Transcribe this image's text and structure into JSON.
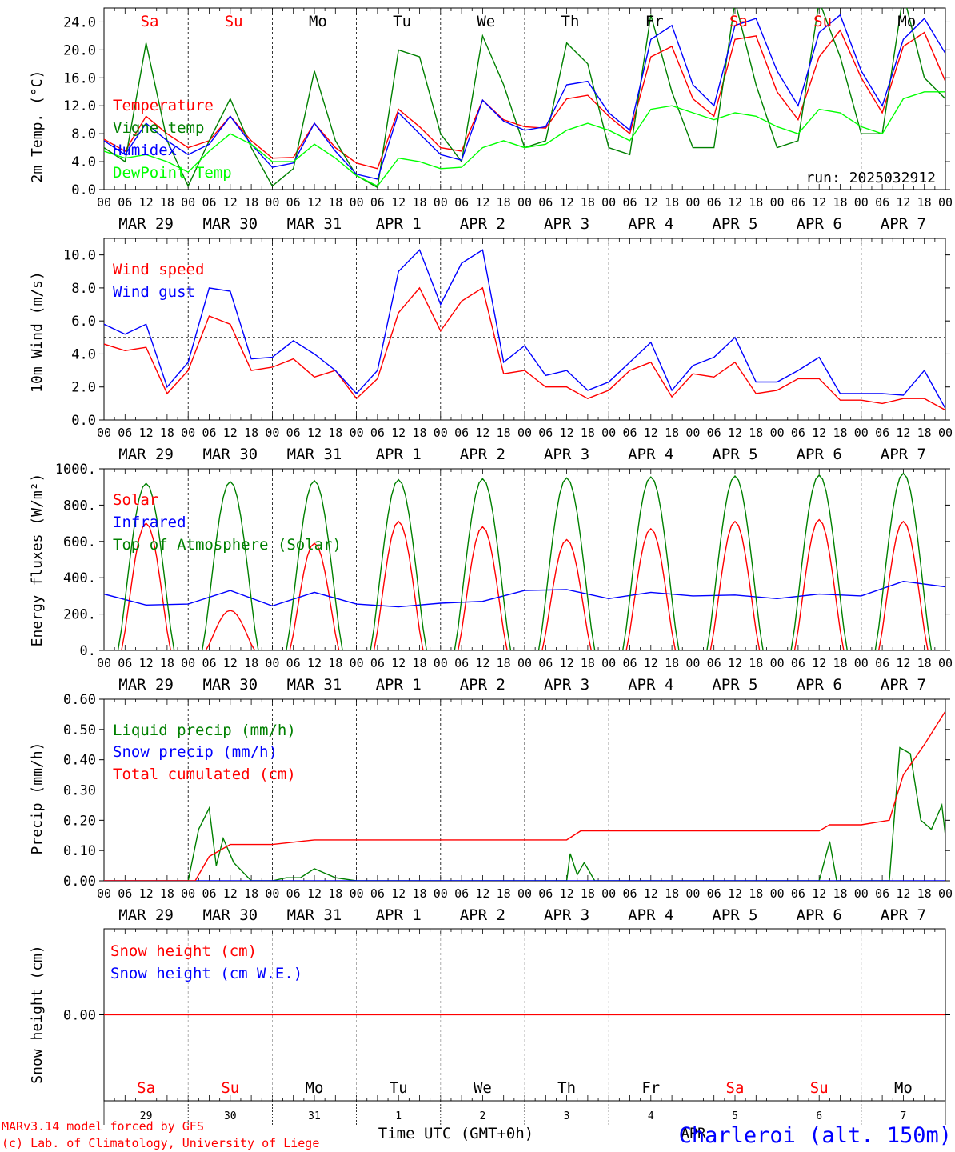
{
  "chart_data": [
    {
      "type": "line",
      "ylabel": "2m Temp. (°C)",
      "ylim": [
        0,
        26
      ],
      "yticks": [
        "0.0",
        "4.0",
        "8.0",
        "12.0",
        "16.0",
        "20.0",
        "24.0"
      ],
      "annotation": "run: 2025032912",
      "legend_placement": "left",
      "series": [
        {
          "name": "Temperature",
          "color": "#ff0000",
          "x": [
            0,
            6,
            12,
            18,
            24,
            30,
            36,
            42,
            48,
            54,
            60,
            66,
            72,
            78,
            84,
            90,
            96,
            102,
            108,
            114,
            120,
            126,
            132,
            138,
            144,
            150,
            156,
            162,
            168,
            174,
            180,
            186,
            192,
            198,
            204,
            210,
            216,
            222,
            228,
            234,
            240
          ],
          "values": [
            7.2,
            5.5,
            10.5,
            8,
            6,
            7,
            10.5,
            7,
            4.5,
            4.6,
            9.5,
            6,
            3.8,
            3,
            11.5,
            9,
            6,
            5.5,
            12.8,
            10,
            9,
            8.8,
            13,
            13.5,
            10.5,
            8,
            19,
            20.5,
            13,
            10.5,
            21.5,
            22,
            14,
            10,
            19,
            22.8,
            16,
            11,
            20.5,
            22.5,
            15.5
          ]
        },
        {
          "name": "Vigne temp",
          "color": "#008000",
          "x": [
            0,
            6,
            12,
            18,
            24,
            30,
            36,
            42,
            48,
            54,
            60,
            66,
            72,
            78,
            84,
            90,
            96,
            102,
            108,
            114,
            120,
            126,
            132,
            138,
            144,
            150,
            156,
            162,
            168,
            174,
            180,
            186,
            192,
            198,
            204,
            210,
            216,
            222,
            228,
            234,
            240
          ],
          "values": [
            6,
            4,
            21,
            7,
            0.5,
            7,
            13,
            6,
            0.5,
            3,
            17,
            7,
            2,
            0.3,
            20,
            19,
            8,
            4,
            22,
            15,
            6,
            7,
            21,
            18,
            6,
            5,
            25,
            14,
            6,
            6,
            27,
            15,
            6,
            7,
            27,
            19,
            8,
            8,
            28,
            16,
            13
          ]
        },
        {
          "name": "Humidex",
          "color": "#0000ff",
          "x": [
            0,
            6,
            12,
            18,
            24,
            30,
            36,
            42,
            48,
            54,
            60,
            66,
            72,
            78,
            84,
            90,
            96,
            102,
            108,
            114,
            120,
            126,
            132,
            138,
            144,
            150,
            156,
            162,
            168,
            174,
            180,
            186,
            192,
            198,
            204,
            210,
            216,
            222,
            228,
            234,
            240
          ],
          "values": [
            7,
            5,
            9.5,
            7,
            5,
            6.5,
            10.5,
            6.5,
            3.2,
            3.8,
            9.5,
            5.5,
            2.2,
            1.5,
            11,
            8,
            5,
            4.2,
            12.8,
            9.8,
            8.5,
            9,
            15,
            15.5,
            11,
            8.5,
            21.5,
            23.5,
            15,
            12,
            23.5,
            24.5,
            17,
            12,
            22.5,
            25,
            17,
            12,
            21.5,
            24.5,
            19.5
          ]
        },
        {
          "name": "DewPoint Temp",
          "color": "#00ff00",
          "x": [
            0,
            6,
            12,
            18,
            24,
            30,
            36,
            42,
            48,
            54,
            60,
            66,
            72,
            78,
            84,
            90,
            96,
            102,
            108,
            114,
            120,
            126,
            132,
            138,
            144,
            150,
            156,
            162,
            168,
            174,
            180,
            186,
            192,
            198,
            204,
            210,
            216,
            222,
            228,
            234,
            240
          ],
          "values": [
            5.5,
            4.5,
            5,
            4,
            2.5,
            5.5,
            8,
            6.5,
            4,
            4,
            6.5,
            4.5,
            2,
            0.5,
            4.5,
            4,
            3,
            3.2,
            6,
            7,
            6,
            6.5,
            8.5,
            9.5,
            8.5,
            7,
            11.5,
            12,
            11,
            10,
            11,
            10.5,
            9,
            8,
            11.5,
            11,
            9,
            8,
            13,
            14,
            14
          ]
        }
      ]
    },
    {
      "type": "line",
      "ylabel": "10m Wind (m/s)",
      "ylim": [
        0,
        11
      ],
      "yticks": [
        "0.0",
        "2.0",
        "4.0",
        "6.0",
        "8.0",
        "10.0"
      ],
      "reference_line": 5,
      "legend_placement": "left",
      "series": [
        {
          "name": "Wind speed",
          "color": "#ff0000",
          "x": [
            0,
            6,
            12,
            18,
            24,
            30,
            36,
            42,
            48,
            54,
            60,
            66,
            72,
            78,
            84,
            90,
            96,
            102,
            108,
            114,
            120,
            126,
            132,
            138,
            144,
            150,
            156,
            162,
            168,
            174,
            180,
            186,
            192,
            198,
            204,
            210,
            216,
            222,
            228,
            234,
            240
          ],
          "values": [
            4.6,
            4.2,
            4.4,
            1.6,
            3,
            6.3,
            5.8,
            3,
            3.2,
            3.7,
            2.6,
            3,
            1.3,
            2.5,
            6.5,
            8,
            5.4,
            7.2,
            8,
            2.8,
            3,
            2,
            2,
            1.3,
            1.8,
            3,
            3.5,
            1.4,
            2.8,
            2.6,
            3.5,
            1.6,
            1.8,
            2.5,
            2.5,
            1.2,
            1.2,
            1,
            1.3,
            1.3,
            0.6
          ]
        },
        {
          "name": "Wind gust",
          "color": "#0000ff",
          "x": [
            0,
            6,
            12,
            18,
            24,
            30,
            36,
            42,
            48,
            54,
            60,
            66,
            72,
            78,
            84,
            90,
            96,
            102,
            108,
            114,
            120,
            126,
            132,
            138,
            144,
            150,
            156,
            162,
            168,
            174,
            180,
            186,
            192,
            198,
            204,
            210,
            216,
            222,
            228,
            234,
            240
          ],
          "values": [
            5.8,
            5.2,
            5.8,
            2,
            3.5,
            8,
            7.8,
            3.7,
            3.8,
            4.8,
            4,
            3,
            1.6,
            3,
            9,
            10.3,
            7,
            9.5,
            10.3,
            3.5,
            4.5,
            2.7,
            3,
            1.8,
            2.3,
            3.5,
            4.7,
            1.8,
            3.3,
            3.8,
            5,
            2.3,
            2.3,
            3,
            3.8,
            1.6,
            1.6,
            1.6,
            1.5,
            3,
            0.7
          ]
        }
      ]
    },
    {
      "type": "line",
      "ylabel": "Energy fluxes (W/m²)",
      "ylim": [
        0,
        1000
      ],
      "yticks": [
        "0.",
        "200.",
        "400.",
        "600.",
        "800.",
        "1000."
      ],
      "legend_placement": "left",
      "series": [
        {
          "name": "Solar",
          "color": "#ff0000",
          "peaks": [
            700,
            220,
            590,
            710,
            680,
            610,
            670,
            710,
            720,
            710
          ]
        },
        {
          "name": "Infrared",
          "color": "#0000ff",
          "x": [
            0,
            12,
            24,
            36,
            48,
            60,
            72,
            84,
            96,
            108,
            120,
            132,
            144,
            156,
            168,
            180,
            192,
            204,
            216,
            228,
            240
          ],
          "values": [
            310,
            250,
            255,
            330,
            245,
            320,
            255,
            240,
            260,
            270,
            330,
            335,
            285,
            320,
            300,
            305,
            285,
            310,
            300,
            380,
            350
          ]
        },
        {
          "name": "Top of Atmosphere (Solar)",
          "color": "#008000",
          "peaks": [
            920,
            930,
            935,
            940,
            945,
            950,
            955,
            960,
            965,
            975
          ]
        }
      ]
    },
    {
      "type": "line",
      "ylabel": "Precip (mm/h)",
      "ylim": [
        0,
        0.6
      ],
      "yticks": [
        "0.00",
        "0.10",
        "0.20",
        "0.30",
        "0.40",
        "0.50",
        "0.60"
      ],
      "legend_placement": "left",
      "series": [
        {
          "name": "Liquid precip (mm/h)",
          "color": "#008000",
          "x": [
            0,
            24,
            27,
            30,
            32,
            34,
            37,
            42,
            48,
            52,
            56,
            60,
            66,
            72,
            132,
            133,
            135,
            137,
            140,
            144,
            204,
            207,
            209,
            224,
            227,
            230,
            233,
            236,
            239,
            240
          ],
          "values": [
            0,
            0,
            0.17,
            0.24,
            0.05,
            0.14,
            0.06,
            0,
            0,
            0.01,
            0.01,
            0.04,
            0.01,
            0,
            0,
            0.09,
            0.02,
            0.06,
            0,
            0,
            0,
            0.13,
            0,
            0,
            0.44,
            0.42,
            0.2,
            0.17,
            0.25,
            0.15
          ]
        },
        {
          "name": "Snow precip (mm/h)",
          "color": "#0000ff",
          "x": [
            0,
            240
          ],
          "values": [
            0,
            0
          ]
        },
        {
          "name": "Total cumulated (cm)",
          "color": "#ff0000",
          "x": [
            0,
            26,
            30,
            36,
            48,
            60,
            72,
            132,
            136,
            144,
            204,
            207,
            216,
            224,
            228,
            234,
            240
          ],
          "values": [
            0,
            0,
            0.08,
            0.12,
            0.12,
            0.135,
            0.135,
            0.135,
            0.165,
            0.165,
            0.165,
            0.185,
            0.185,
            0.2,
            0.35,
            0.45,
            0.56
          ]
        }
      ]
    },
    {
      "type": "line",
      "ylabel": "Snow height (cm)",
      "yticks": [
        "0.00"
      ],
      "legend_placement": "left",
      "series": [
        {
          "name": "Snow height (cm)",
          "color": "#ff0000",
          "x": [
            0,
            240
          ],
          "values": [
            0,
            0
          ]
        },
        {
          "name": "Snow height (cm W.E.)",
          "color": "#0000ff",
          "x": [
            0,
            240
          ],
          "values": [
            0,
            0
          ]
        }
      ]
    }
  ],
  "axis": {
    "hour_ticks": [
      "00",
      "06",
      "12",
      "18"
    ],
    "end_tick": "00",
    "dates": [
      "MAR 29",
      "MAR 30",
      "MAR 31",
      "APR  1",
      "APR  2",
      "APR  3",
      "APR  4",
      "APR  5",
      "APR  6",
      "APR  7"
    ],
    "weekdays": [
      {
        "label": "Sa",
        "color": "#ff0000"
      },
      {
        "label": "Su",
        "color": "#ff0000"
      },
      {
        "label": "Mo",
        "color": "#000000"
      },
      {
        "label": "Tu",
        "color": "#000000"
      },
      {
        "label": "We",
        "color": "#000000"
      },
      {
        "label": "Th",
        "color": "#000000"
      },
      {
        "label": "Fr",
        "color": "#000000"
      },
      {
        "label": "Sa",
        "color": "#ff0000"
      },
      {
        "label": "Su",
        "color": "#ff0000"
      },
      {
        "label": "Mo",
        "color": "#000000"
      }
    ],
    "day_numbers": [
      "29",
      "30",
      "31",
      "1",
      "2",
      "3",
      "4",
      "5",
      "6",
      "7"
    ],
    "month": "APR",
    "xlabel": "Time UTC (GMT+0h)"
  },
  "footer": {
    "credit_line1": "MARv3.14 model forced by GFS",
    "credit_line2": "(c) Lab. of Climatology, University of Liege",
    "location": "Charleroi (alt. 150m)"
  }
}
